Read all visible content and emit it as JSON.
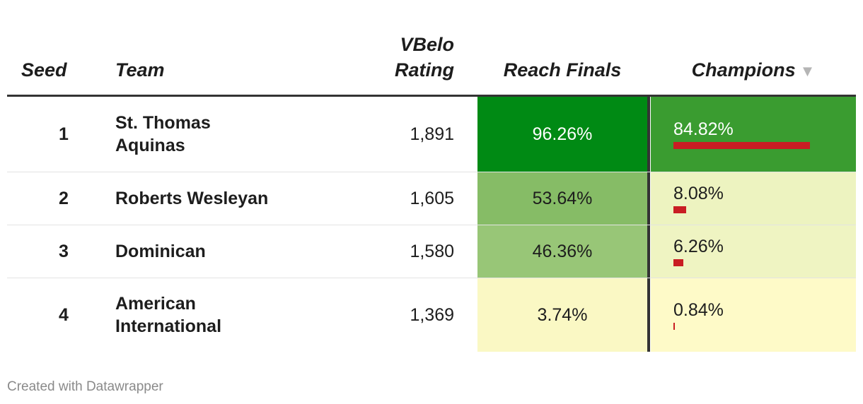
{
  "chart_data": {
    "type": "table",
    "columns": {
      "seed": "Seed",
      "team": "Team",
      "rating_line1": "VBelo",
      "rating_line2": "Rating",
      "finals": "Reach Finals",
      "champions": "Champions"
    },
    "sort": {
      "column": "champions",
      "direction": "descending"
    },
    "rows": [
      {
        "seed": "1",
        "team": [
          "St. Thomas",
          "Aquinas"
        ],
        "rating": "1,891",
        "finals": "96.26%",
        "finals_value": 96.26,
        "champions": "84.82%",
        "champions_value": 84.82,
        "finals_color": "#008a14",
        "champ_color": "#3a9c30",
        "finals_text": "#ffffff",
        "champ_text": "#ffffff"
      },
      {
        "seed": "2",
        "team": [
          "Roberts Wesleyan"
        ],
        "rating": "1,605",
        "finals": "53.64%",
        "finals_value": 53.64,
        "champions": "8.08%",
        "champions_value": 8.08,
        "finals_color": "#86bc66",
        "champ_color": "#edf3c0",
        "finals_text": "#1d1d1d",
        "champ_text": "#1d1d1d"
      },
      {
        "seed": "3",
        "team": [
          "Dominican"
        ],
        "rating": "1,580",
        "finals": "46.36%",
        "finals_value": 46.36,
        "champions": "6.26%",
        "champions_value": 6.26,
        "finals_color": "#98c677",
        "champ_color": "#eff4c2",
        "finals_text": "#1d1d1d",
        "champ_text": "#1d1d1d"
      },
      {
        "seed": "4",
        "team": [
          "American",
          "International"
        ],
        "rating": "1,369",
        "finals": "3.74%",
        "finals_value": 3.74,
        "champions": "0.84%",
        "champions_value": 0.84,
        "finals_color": "#faf8c4",
        "champ_color": "#fefac8",
        "finals_text": "#1d1d1d",
        "champ_text": "#1d1d1d"
      }
    ],
    "bar_color": "#c91d23",
    "bar_max": 100
  },
  "footer": {
    "credit": "Created with Datawrapper"
  }
}
